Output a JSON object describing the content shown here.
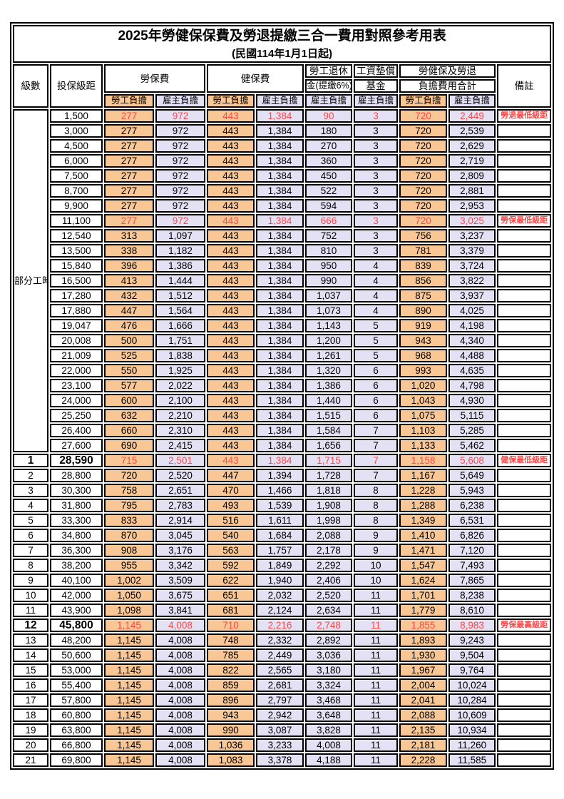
{
  "title": "2025年勞健保保費及勞退提繳三合一費用對照參考用表",
  "subtitle": "(民國114年1月1日起)",
  "colors": {
    "employee_column_orange": "#F8C795",
    "employer_column_lavender": "#E3E1F3",
    "highlight_red": "#FF4747",
    "border_black": "#000000"
  },
  "header": {
    "level": "級數",
    "bracket": "投保級距",
    "labor_insurance": "勞保費",
    "health_insurance": "健保費",
    "pension_line1": "勞工退休",
    "pension_line2": "金(提繳6%)",
    "wage_fund_line1": "工資墊償",
    "wage_fund_line2": "基金",
    "total_line1": "勞健保及勞退",
    "total_line2": "負擔費用合計",
    "remark": "備註",
    "employee_share": "勞工負擔",
    "employer_share": "雇主負擔"
  },
  "part_time_label": "部分工時",
  "value_column_styles": [
    "orange",
    "lavender",
    "orange",
    "lavender",
    "lavender",
    "lavender",
    "orange",
    "lavender"
  ],
  "rows": [
    {
      "level": "",
      "bracket": "1,500",
      "values": [
        "277",
        "972",
        "443",
        "1,384",
        "90",
        "3",
        "720",
        "2,449"
      ],
      "remark": "勞退最低級距",
      "highlight": true,
      "bold_bracket": false
    },
    {
      "level": "",
      "bracket": "3,000",
      "values": [
        "277",
        "972",
        "443",
        "1,384",
        "180",
        "3",
        "720",
        "2,539"
      ],
      "remark": "",
      "highlight": false,
      "bold_bracket": false
    },
    {
      "level": "",
      "bracket": "4,500",
      "values": [
        "277",
        "972",
        "443",
        "1,384",
        "270",
        "3",
        "720",
        "2,629"
      ],
      "remark": "",
      "highlight": false,
      "bold_bracket": false
    },
    {
      "level": "",
      "bracket": "6,000",
      "values": [
        "277",
        "972",
        "443",
        "1,384",
        "360",
        "3",
        "720",
        "2,719"
      ],
      "remark": "",
      "highlight": false,
      "bold_bracket": false
    },
    {
      "level": "",
      "bracket": "7,500",
      "values": [
        "277",
        "972",
        "443",
        "1,384",
        "450",
        "3",
        "720",
        "2,809"
      ],
      "remark": "",
      "highlight": false,
      "bold_bracket": false
    },
    {
      "level": "",
      "bracket": "8,700",
      "values": [
        "277",
        "972",
        "443",
        "1,384",
        "522",
        "3",
        "720",
        "2,881"
      ],
      "remark": "",
      "highlight": false,
      "bold_bracket": false
    },
    {
      "level": "",
      "bracket": "9,900",
      "values": [
        "277",
        "972",
        "443",
        "1,384",
        "594",
        "3",
        "720",
        "2,953"
      ],
      "remark": "",
      "highlight": false,
      "bold_bracket": false
    },
    {
      "level": "",
      "bracket": "11,100",
      "values": [
        "277",
        "972",
        "443",
        "1,384",
        "666",
        "3",
        "720",
        "3,025"
      ],
      "remark": "勞保最低級距",
      "highlight": true,
      "bold_bracket": false
    },
    {
      "level": "",
      "bracket": "12,540",
      "values": [
        "313",
        "1,097",
        "443",
        "1,384",
        "752",
        "3",
        "756",
        "3,237"
      ],
      "remark": "",
      "highlight": false,
      "bold_bracket": false
    },
    {
      "level": "",
      "bracket": "13,500",
      "values": [
        "338",
        "1,182",
        "443",
        "1,384",
        "810",
        "3",
        "781",
        "3,379"
      ],
      "remark": "",
      "highlight": false,
      "bold_bracket": false
    },
    {
      "level": "",
      "bracket": "15,840",
      "values": [
        "396",
        "1,386",
        "443",
        "1,384",
        "950",
        "4",
        "839",
        "3,724"
      ],
      "remark": "",
      "highlight": false,
      "bold_bracket": false
    },
    {
      "level": "",
      "bracket": "16,500",
      "values": [
        "413",
        "1,444",
        "443",
        "1,384",
        "990",
        "4",
        "856",
        "3,822"
      ],
      "remark": "",
      "highlight": false,
      "bold_bracket": false
    },
    {
      "level": "",
      "bracket": "17,280",
      "values": [
        "432",
        "1,512",
        "443",
        "1,384",
        "1,037",
        "4",
        "875",
        "3,937"
      ],
      "remark": "",
      "highlight": false,
      "bold_bracket": false
    },
    {
      "level": "",
      "bracket": "17,880",
      "values": [
        "447",
        "1,564",
        "443",
        "1,384",
        "1,073",
        "4",
        "890",
        "4,025"
      ],
      "remark": "",
      "highlight": false,
      "bold_bracket": false
    },
    {
      "level": "",
      "bracket": "19,047",
      "values": [
        "476",
        "1,666",
        "443",
        "1,384",
        "1,143",
        "5",
        "919",
        "4,198"
      ],
      "remark": "",
      "highlight": false,
      "bold_bracket": false
    },
    {
      "level": "",
      "bracket": "20,008",
      "values": [
        "500",
        "1,751",
        "443",
        "1,384",
        "1,200",
        "5",
        "943",
        "4,340"
      ],
      "remark": "",
      "highlight": false,
      "bold_bracket": false
    },
    {
      "level": "",
      "bracket": "21,009",
      "values": [
        "525",
        "1,838",
        "443",
        "1,384",
        "1,261",
        "5",
        "968",
        "4,488"
      ],
      "remark": "",
      "highlight": false,
      "bold_bracket": false
    },
    {
      "level": "",
      "bracket": "22,000",
      "values": [
        "550",
        "1,925",
        "443",
        "1,384",
        "1,320",
        "6",
        "993",
        "4,635"
      ],
      "remark": "",
      "highlight": false,
      "bold_bracket": false
    },
    {
      "level": "",
      "bracket": "23,100",
      "values": [
        "577",
        "2,022",
        "443",
        "1,384",
        "1,386",
        "6",
        "1,020",
        "4,798"
      ],
      "remark": "",
      "highlight": false,
      "bold_bracket": false
    },
    {
      "level": "",
      "bracket": "24,000",
      "values": [
        "600",
        "2,100",
        "443",
        "1,384",
        "1,440",
        "6",
        "1,043",
        "4,930"
      ],
      "remark": "",
      "highlight": false,
      "bold_bracket": false
    },
    {
      "level": "",
      "bracket": "25,250",
      "values": [
        "632",
        "2,210",
        "443",
        "1,384",
        "1,515",
        "6",
        "1,075",
        "5,115"
      ],
      "remark": "",
      "highlight": false,
      "bold_bracket": false
    },
    {
      "level": "",
      "bracket": "26,400",
      "values": [
        "660",
        "2,310",
        "443",
        "1,384",
        "1,584",
        "7",
        "1,103",
        "5,285"
      ],
      "remark": "",
      "highlight": false,
      "bold_bracket": false
    },
    {
      "level": "",
      "bracket": "27,600",
      "values": [
        "690",
        "2,415",
        "443",
        "1,384",
        "1,656",
        "7",
        "1,133",
        "5,462"
      ],
      "remark": "",
      "highlight": false,
      "bold_bracket": false
    },
    {
      "level": "1",
      "bracket": "28,590",
      "values": [
        "715",
        "2,501",
        "443",
        "1,384",
        "1,715",
        "7",
        "1,158",
        "5,608"
      ],
      "remark": "健保最低級距",
      "highlight": true,
      "bold_bracket": true
    },
    {
      "level": "2",
      "bracket": "28,800",
      "values": [
        "720",
        "2,520",
        "447",
        "1,394",
        "1,728",
        "7",
        "1,167",
        "5,649"
      ],
      "remark": "",
      "highlight": false,
      "bold_bracket": false
    },
    {
      "level": "3",
      "bracket": "30,300",
      "values": [
        "758",
        "2,651",
        "470",
        "1,466",
        "1,818",
        "8",
        "1,228",
        "5,943"
      ],
      "remark": "",
      "highlight": false,
      "bold_bracket": false
    },
    {
      "level": "4",
      "bracket": "31,800",
      "values": [
        "795",
        "2,783",
        "493",
        "1,539",
        "1,908",
        "8",
        "1,288",
        "6,238"
      ],
      "remark": "",
      "highlight": false,
      "bold_bracket": false
    },
    {
      "level": "5",
      "bracket": "33,300",
      "values": [
        "833",
        "2,914",
        "516",
        "1,611",
        "1,998",
        "8",
        "1,349",
        "6,531"
      ],
      "remark": "",
      "highlight": false,
      "bold_bracket": false
    },
    {
      "level": "6",
      "bracket": "34,800",
      "values": [
        "870",
        "3,045",
        "540",
        "1,684",
        "2,088",
        "9",
        "1,410",
        "6,826"
      ],
      "remark": "",
      "highlight": false,
      "bold_bracket": false
    },
    {
      "level": "7",
      "bracket": "36,300",
      "values": [
        "908",
        "3,176",
        "563",
        "1,757",
        "2,178",
        "9",
        "1,471",
        "7,120"
      ],
      "remark": "",
      "highlight": false,
      "bold_bracket": false
    },
    {
      "level": "8",
      "bracket": "38,200",
      "values": [
        "955",
        "3,342",
        "592",
        "1,849",
        "2,292",
        "10",
        "1,547",
        "7,493"
      ],
      "remark": "",
      "highlight": false,
      "bold_bracket": false
    },
    {
      "level": "9",
      "bracket": "40,100",
      "values": [
        "1,002",
        "3,509",
        "622",
        "1,940",
        "2,406",
        "10",
        "1,624",
        "7,865"
      ],
      "remark": "",
      "highlight": false,
      "bold_bracket": false
    },
    {
      "level": "10",
      "bracket": "42,000",
      "values": [
        "1,050",
        "3,675",
        "651",
        "2,032",
        "2,520",
        "11",
        "1,701",
        "8,238"
      ],
      "remark": "",
      "highlight": false,
      "bold_bracket": false
    },
    {
      "level": "11",
      "bracket": "43,900",
      "values": [
        "1,098",
        "3,841",
        "681",
        "2,124",
        "2,634",
        "11",
        "1,779",
        "8,610"
      ],
      "remark": "",
      "highlight": false,
      "bold_bracket": false
    },
    {
      "level": "12",
      "bracket": "45,800",
      "values": [
        "1,145",
        "4,008",
        "710",
        "2,216",
        "2,748",
        "11",
        "1,855",
        "8,983"
      ],
      "remark": "勞保最高級距",
      "highlight": true,
      "bold_bracket": true
    },
    {
      "level": "13",
      "bracket": "48,200",
      "values": [
        "1,145",
        "4,008",
        "748",
        "2,332",
        "2,892",
        "11",
        "1,893",
        "9,243"
      ],
      "remark": "",
      "highlight": false,
      "bold_bracket": false
    },
    {
      "level": "14",
      "bracket": "50,600",
      "values": [
        "1,145",
        "4,008",
        "785",
        "2,449",
        "3,036",
        "11",
        "1,930",
        "9,504"
      ],
      "remark": "",
      "highlight": false,
      "bold_bracket": false
    },
    {
      "level": "15",
      "bracket": "53,000",
      "values": [
        "1,145",
        "4,008",
        "822",
        "2,565",
        "3,180",
        "11",
        "1,967",
        "9,764"
      ],
      "remark": "",
      "highlight": false,
      "bold_bracket": false
    },
    {
      "level": "16",
      "bracket": "55,400",
      "values": [
        "1,145",
        "4,008",
        "859",
        "2,681",
        "3,324",
        "11",
        "2,004",
        "10,024"
      ],
      "remark": "",
      "highlight": false,
      "bold_bracket": false
    },
    {
      "level": "17",
      "bracket": "57,800",
      "values": [
        "1,145",
        "4,008",
        "896",
        "2,797",
        "3,468",
        "11",
        "2,041",
        "10,284"
      ],
      "remark": "",
      "highlight": false,
      "bold_bracket": false
    },
    {
      "level": "18",
      "bracket": "60,800",
      "values": [
        "1,145",
        "4,008",
        "943",
        "2,942",
        "3,648",
        "11",
        "2,088",
        "10,609"
      ],
      "remark": "",
      "highlight": false,
      "bold_bracket": false
    },
    {
      "level": "19",
      "bracket": "63,800",
      "values": [
        "1,145",
        "4,008",
        "990",
        "3,087",
        "3,828",
        "11",
        "2,135",
        "10,934"
      ],
      "remark": "",
      "highlight": false,
      "bold_bracket": false
    },
    {
      "level": "20",
      "bracket": "66,800",
      "values": [
        "1,145",
        "4,008",
        "1,036",
        "3,233",
        "4,008",
        "11",
        "2,181",
        "11,260"
      ],
      "remark": "",
      "highlight": false,
      "bold_bracket": false
    },
    {
      "level": "21",
      "bracket": "69,800",
      "values": [
        "1,145",
        "4,008",
        "1,083",
        "3,378",
        "4,188",
        "11",
        "2,228",
        "11,585"
      ],
      "remark": "",
      "highlight": false,
      "bold_bracket": false
    }
  ]
}
